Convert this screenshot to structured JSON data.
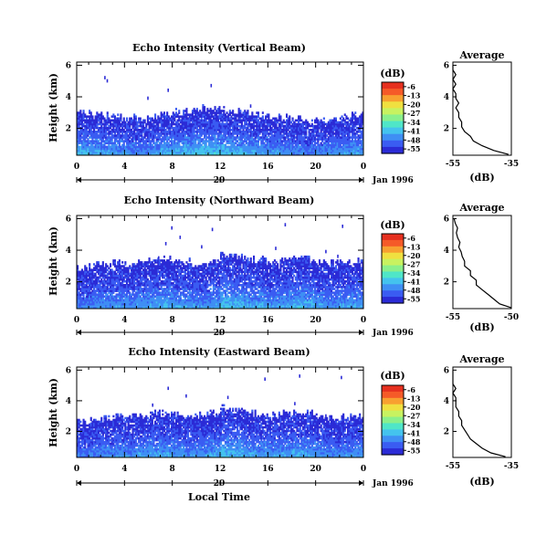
{
  "figure": {
    "xlabel": "Local Time",
    "date_label": "Jan 1996",
    "date_day": "20"
  },
  "colormap": [
    "#2b2bd6",
    "#3a5cf2",
    "#3f8ff4",
    "#44c3ee",
    "#4fe6c8",
    "#8af08c",
    "#c8f260",
    "#f0e040",
    "#f8a030",
    "#f55a28",
    "#e6301f"
  ],
  "chart_data": [
    {
      "type": "heatmap",
      "title": "Echo Intensity (Vertical Beam)",
      "ylabel": "Height (km)",
      "x_ticks": [
        "0",
        "4",
        "8",
        "12",
        "16",
        "20",
        "0"
      ],
      "y_ticks": [
        "6",
        "4",
        "2"
      ],
      "xlim": [
        0,
        24
      ],
      "ylim": [
        0.3,
        6.2
      ],
      "colorbar": {
        "unit": "(dB)",
        "ticks": [
          "-6",
          "-13",
          "-20",
          "-27",
          "-34",
          "-41",
          "-48",
          "-55"
        ]
      },
      "profile_base": 0.3,
      "profile_top": 3.2,
      "specks": [
        [
          2.3,
          5.2
        ],
        [
          2.5,
          5.0
        ],
        [
          11.2,
          4.7
        ],
        [
          7.6,
          4.4
        ],
        [
          12.8,
          2.9
        ],
        [
          13.4,
          2.8
        ],
        [
          11.8,
          2.5
        ],
        [
          2.8,
          2.2
        ],
        [
          18.2,
          2.3
        ],
        [
          14.5,
          3.4
        ],
        [
          5.9,
          3.9
        ]
      ],
      "mean": [
        14,
        13,
        12,
        11,
        10,
        9,
        11,
        13,
        14,
        15,
        16,
        16,
        15,
        14,
        13,
        12,
        11,
        10,
        9,
        8,
        9,
        10,
        11,
        12
      ],
      "profile": {
        "title": "Average",
        "xlabel": "(dB)",
        "x_ticks": [
          "-55",
          "-35"
        ],
        "xlim": [
          -55,
          -35
        ],
        "y_ticks": [
          "6",
          "4",
          "2"
        ],
        "heights": [
          0.35,
          0.6,
          0.9,
          1.2,
          1.5,
          1.8,
          2.1,
          2.4,
          2.7,
          3.0,
          3.3,
          3.6,
          3.9,
          4.2,
          4.5,
          4.8,
          5.1,
          5.4,
          5.7,
          6.0
        ],
        "values": [
          -36,
          -41,
          -45,
          -48,
          -49,
          -51,
          -52,
          -52,
          -53,
          -53,
          -54,
          -53,
          -54,
          -54,
          -55,
          -54,
          -55,
          -54,
          -55,
          -55
        ]
      }
    },
    {
      "type": "heatmap",
      "title": "Echo Intensity (Northward Beam)",
      "ylabel": "Height (km)",
      "x_ticks": [
        "0",
        "4",
        "8",
        "12",
        "16",
        "20",
        "0"
      ],
      "y_ticks": [
        "6",
        "4",
        "2"
      ],
      "xlim": [
        0,
        24
      ],
      "ylim": [
        0.3,
        6.2
      ],
      "colorbar": {
        "unit": "(dB)",
        "ticks": [
          "-6",
          "-13",
          "-20",
          "-27",
          "-34",
          "-41",
          "-48",
          "-55"
        ]
      },
      "profile_base": 0.3,
      "profile_top": 3.8,
      "specks": [
        [
          7.9,
          5.4
        ],
        [
          11.3,
          5.3
        ],
        [
          17.4,
          5.6
        ],
        [
          22.2,
          5.5
        ],
        [
          8.6,
          4.8
        ],
        [
          7.4,
          4.4
        ],
        [
          16.6,
          4.1
        ],
        [
          20.8,
          3.9
        ],
        [
          21.8,
          3.6
        ],
        [
          13.7,
          3.4
        ],
        [
          10.4,
          4.2
        ],
        [
          6.8,
          3.5
        ]
      ],
      "mean": [
        8,
        9,
        10,
        11,
        10,
        11,
        12,
        13,
        12,
        11,
        10,
        12,
        15,
        14,
        12,
        12,
        11,
        12,
        14,
        13,
        11,
        10,
        11,
        12
      ],
      "profile": {
        "title": "Average",
        "xlabel": "(dB)",
        "x_ticks": [
          "-55",
          "-50"
        ],
        "xlim": [
          -55,
          -50
        ],
        "y_ticks": [
          "6",
          "4",
          "2"
        ],
        "heights": [
          0.35,
          0.6,
          0.9,
          1.2,
          1.5,
          1.8,
          2.1,
          2.4,
          2.7,
          3.0,
          3.3,
          3.6,
          3.9,
          4.2,
          4.5,
          4.8,
          5.1,
          5.4,
          5.7,
          6.0
        ],
        "values": [
          -50,
          -51,
          -51.5,
          -52,
          -52.5,
          -53,
          -53,
          -53.5,
          -53.5,
          -54,
          -54,
          -54.2,
          -54.3,
          -54.5,
          -54.4,
          -54.6,
          -54.7,
          -54.6,
          -54.8,
          -54.9
        ]
      }
    },
    {
      "type": "heatmap",
      "title": "Echo Intensity (Eastward Beam)",
      "ylabel": "Height (km)",
      "x_ticks": [
        "0",
        "4",
        "8",
        "12",
        "16",
        "20",
        "0"
      ],
      "y_ticks": [
        "6",
        "4",
        "2"
      ],
      "xlim": [
        0,
        24
      ],
      "ylim": [
        0.3,
        6.2
      ],
      "colorbar": {
        "unit": "(dB)",
        "ticks": [
          "-6",
          "-13",
          "-20",
          "-27",
          "-34",
          "-41",
          "-48",
          "-55"
        ]
      },
      "profile_base": 0.3,
      "profile_top": 3.6,
      "specks": [
        [
          15.7,
          5.4
        ],
        [
          18.6,
          5.6
        ],
        [
          22.1,
          5.5
        ],
        [
          7.6,
          4.8
        ],
        [
          9.1,
          4.3
        ],
        [
          6.3,
          3.7
        ],
        [
          18.2,
          3.8
        ],
        [
          12.6,
          4.2
        ],
        [
          20.8,
          3.0
        ],
        [
          3.1,
          2.6
        ],
        [
          1.0,
          2.4
        ]
      ],
      "mean": [
        7,
        8,
        9,
        10,
        10,
        11,
        12,
        12,
        11,
        10,
        11,
        12,
        15,
        14,
        12,
        11,
        11,
        12,
        13,
        12,
        10,
        9,
        10,
        11
      ],
      "profile": {
        "title": "Average",
        "xlabel": "(dB)",
        "x_ticks": [
          "-55",
          "-35"
        ],
        "xlim": [
          -55,
          -35
        ],
        "y_ticks": [
          "6",
          "4",
          "2"
        ],
        "heights": [
          0.35,
          0.6,
          0.9,
          1.2,
          1.5,
          1.8,
          2.1,
          2.4,
          2.7,
          3.0,
          3.3,
          3.6,
          3.9,
          4.2,
          4.5,
          4.8,
          5.1,
          5.4,
          5.7,
          6.0
        ],
        "values": [
          -37,
          -42,
          -45,
          -47,
          -49,
          -50,
          -51,
          -52,
          -52,
          -53,
          -53,
          -54,
          -54,
          -54,
          -55,
          -54,
          -55,
          -55,
          -55,
          -55
        ]
      }
    }
  ]
}
